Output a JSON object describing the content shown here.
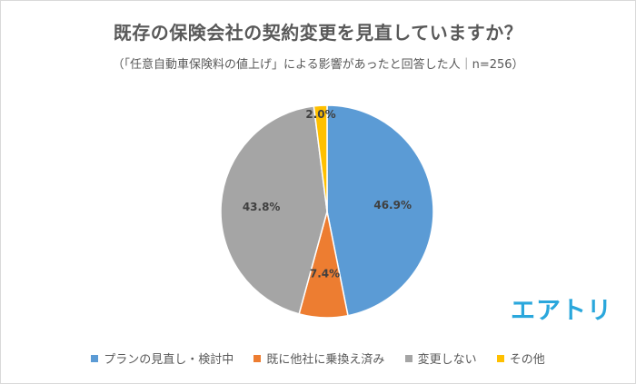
{
  "chart_data": {
    "type": "pie",
    "title": "既存の保険会社の契約変更を見直していますか？",
    "subtitle": "（「任意自動車保険料の値上げ」による影響があったと回答した人｜n=256）",
    "categories": [
      "プランの見直し・検討中",
      "既に他社に乗換え済み",
      "変更しない",
      "その他"
    ],
    "values": [
      46.9,
      7.4,
      43.8,
      2.0
    ],
    "value_labels": [
      "46.9%",
      "7.4%",
      "43.8%",
      "2.0%"
    ],
    "colors": [
      "#5b9bd5",
      "#ed7d31",
      "#a5a5a5",
      "#ffc000"
    ],
    "start": "12 o'clock",
    "direction": "clockwise",
    "legend_position": "bottom"
  },
  "logo_text": "エアトリ"
}
